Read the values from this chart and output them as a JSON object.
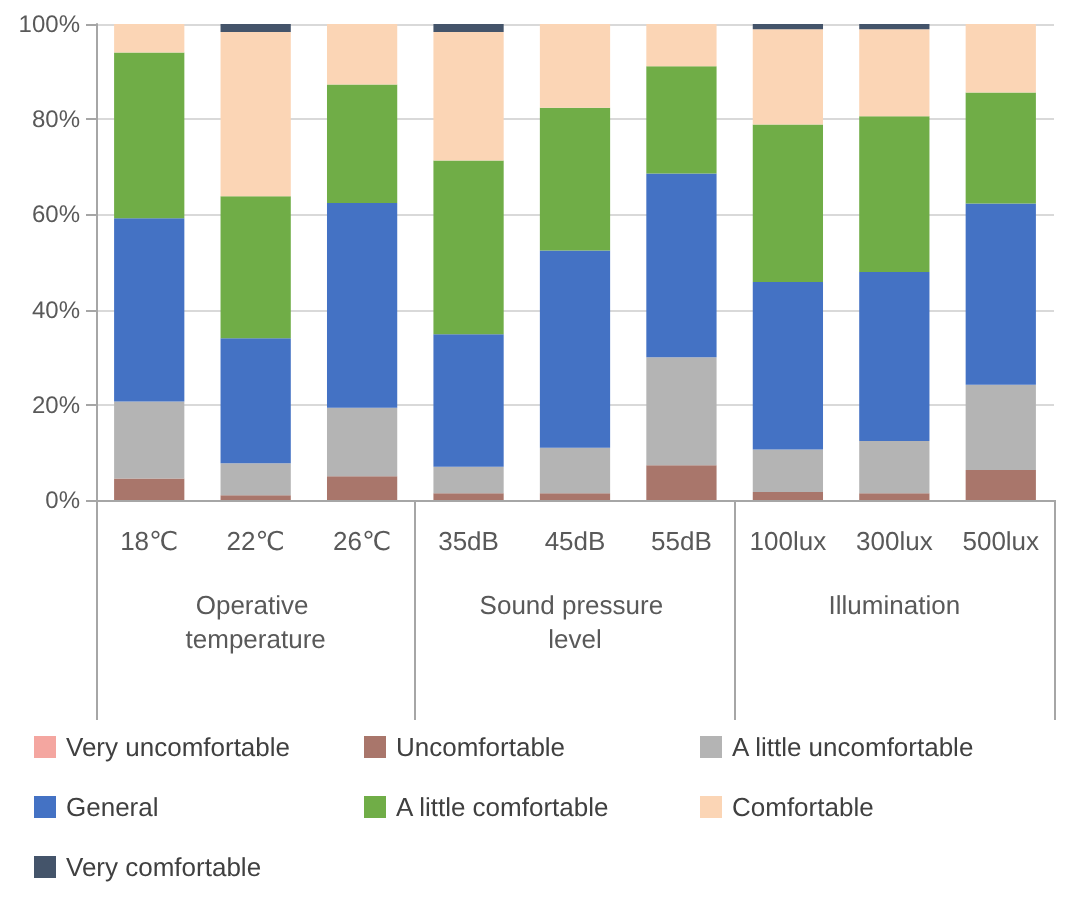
{
  "chart_data": {
    "type": "bar",
    "stacked": true,
    "categories": [
      "18℃",
      "22℃",
      "26℃",
      "35dB",
      "45dB",
      "55dB",
      "100lux",
      "300lux",
      "500lux"
    ],
    "series": [
      {
        "name": "Very uncomfortable",
        "color": "#f4a6a0",
        "values": [
          0,
          0,
          0,
          0,
          0,
          0,
          0,
          0,
          0
        ]
      },
      {
        "name": "Uncomfortable",
        "color": "#a9766b",
        "values": [
          4.5,
          1,
          5,
          1.4,
          1.4,
          7.3,
          1.7,
          1.4,
          6.3
        ]
      },
      {
        "name": "A little uncomfortable",
        "color": "#b4b4b4",
        "values": [
          16.2,
          6.7,
          14.4,
          5.6,
          9.6,
          22.7,
          8.9,
          11,
          17.9
        ]
      },
      {
        "name": "General",
        "color": "#4472c4",
        "values": [
          38.5,
          26.3,
          43,
          27.8,
          41.4,
          38.6,
          35.2,
          35.5,
          38.1
        ]
      },
      {
        "name": "A little comfortable",
        "color": "#70ad47",
        "values": [
          34.8,
          29.8,
          24.9,
          36.5,
          30,
          22.5,
          33.1,
          32.7,
          23.3
        ]
      },
      {
        "name": "Comfortable",
        "color": "#fbd5b5",
        "values": [
          6,
          34.5,
          12.7,
          27,
          17.6,
          8.9,
          20,
          18.3,
          14.4
        ]
      },
      {
        "name": "Very comfortable",
        "color": "#44546a",
        "values": [
          0,
          1.7,
          0,
          1.7,
          0,
          0,
          1.1,
          1.1,
          0
        ]
      }
    ],
    "ylim": [
      0,
      100
    ],
    "yticks": [
      {
        "value": 0,
        "label": "0%"
      },
      {
        "value": 20,
        "label": "20%"
      },
      {
        "value": 40,
        "label": "40%"
      },
      {
        "value": 60,
        "label": "60%"
      },
      {
        "value": 80,
        "label": "80%"
      },
      {
        "value": 100,
        "label": "100%"
      }
    ],
    "grid": "y",
    "legend": "bottom",
    "annotations": [
      "Operative temperature",
      "Sound pressure level",
      "Illumination"
    ]
  }
}
